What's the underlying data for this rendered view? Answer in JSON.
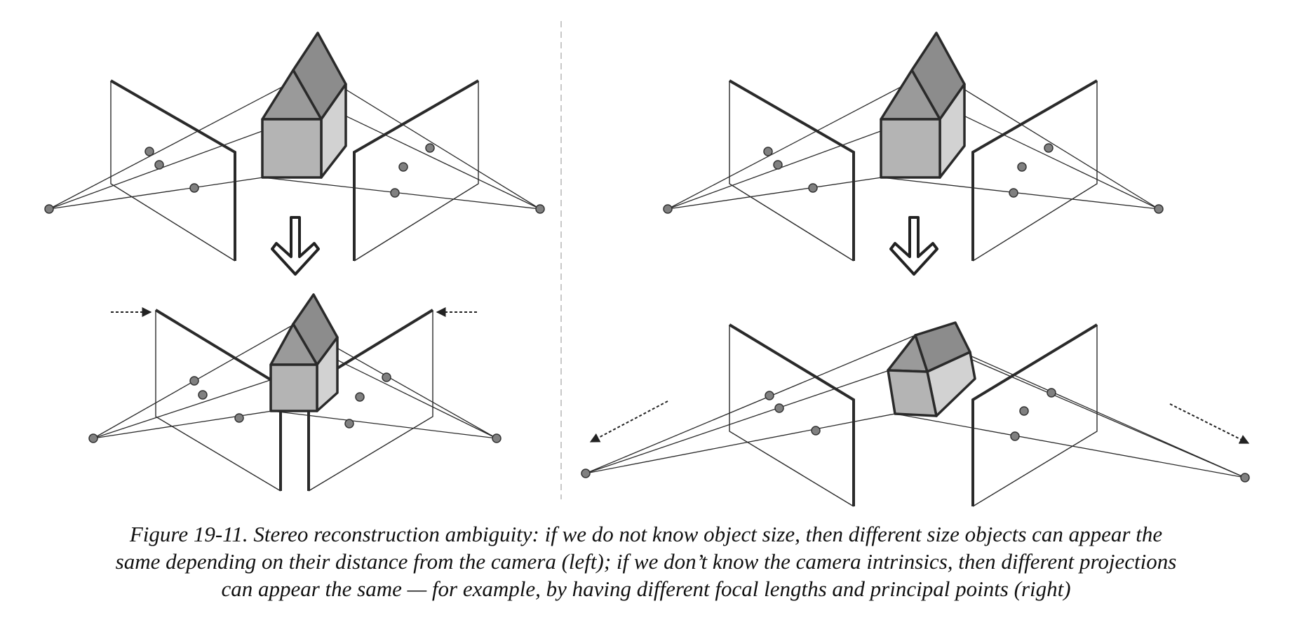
{
  "caption": {
    "line1": "Figure 19-11. Stereo reconstruction ambiguity: if we do not know object size, then different size objects can appear the",
    "line2": "same depending on their distance from the camera (left); if we don’t know the camera intrinsics, then different projections",
    "line3": "can appear the same — for example, by having different focal lengths and principal points (right)"
  },
  "colors": {
    "roof": "#9a9a9a",
    "roof_side": "#8c8c8c",
    "front": "#b4b4b4",
    "side": "#d2d2d2",
    "stroke": "#2a2a2a",
    "point": "#808080",
    "divider": "#c8c8c8"
  },
  "icons": [
    "down-arrow-icon",
    "dashed-arrow-icon"
  ]
}
